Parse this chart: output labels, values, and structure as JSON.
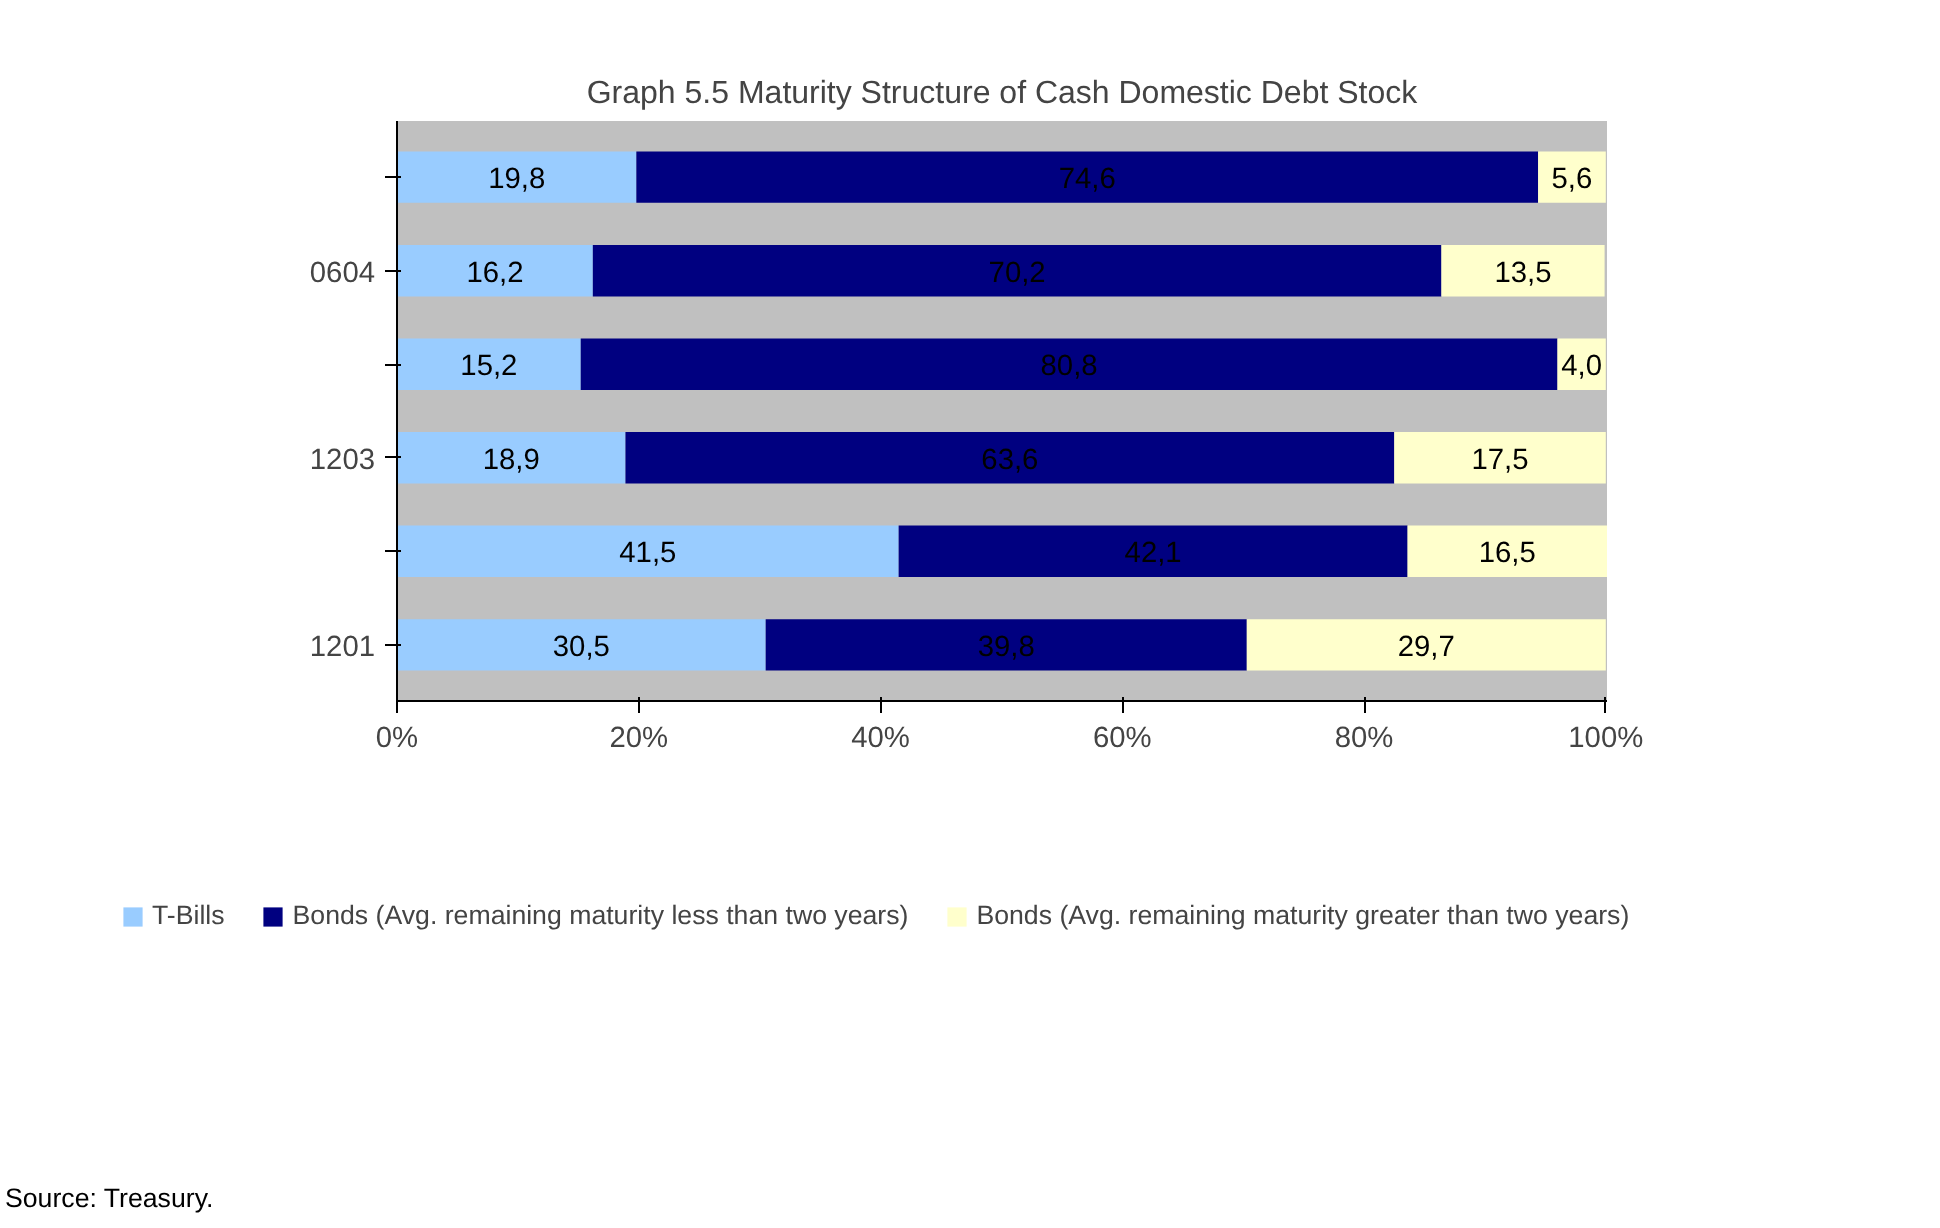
{
  "chart_data": {
    "type": "bar",
    "orientation": "horizontal",
    "stacked": true,
    "title": "Graph 5.5 Maturity Structure of Cash Domestic Debt Stock",
    "annotations": [
      "Source: Treasury."
    ],
    "categories": [
      null,
      "0604",
      null,
      "1203",
      null,
      "1201"
    ],
    "series": [
      {
        "name": "T-Bills",
        "color": "#99ccff",
        "values": [
          19.8,
          16.2,
          15.2,
          18.9,
          41.5,
          30.5
        ],
        "value_labels": [
          "19,8",
          "16,2",
          "15,2",
          "18,9",
          "41,5",
          "30,5"
        ]
      },
      {
        "name": "Bonds (Avg. remaining maturity less than two years)",
        "color": "#000080",
        "values": [
          74.6,
          70.2,
          80.8,
          63.6,
          42.1,
          39.8
        ],
        "value_labels": [
          "74,6",
          "70,2",
          "80,8",
          "63,6",
          "42,1",
          "39,8"
        ]
      },
      {
        "name": "Bonds (Avg. remaining maturity greater than two years)",
        "color": "#ffffcc",
        "values": [
          5.6,
          13.5,
          4.0,
          17.5,
          16.5,
          29.7
        ],
        "value_labels": [
          "5,6",
          "13,5",
          "4,0",
          "17,5",
          "16,5",
          "29,7"
        ]
      }
    ],
    "xlim": [
      0,
      100.1
    ],
    "xticks": [
      {
        "value": 0,
        "label": "0%"
      },
      {
        "value": 20,
        "label": "20%"
      },
      {
        "value": 40,
        "label": "40%"
      },
      {
        "value": 60,
        "label": "60%"
      },
      {
        "value": 80,
        "label": "80%"
      },
      {
        "value": 100,
        "label": "100%"
      }
    ],
    "grid": false,
    "legend": "bottom"
  }
}
